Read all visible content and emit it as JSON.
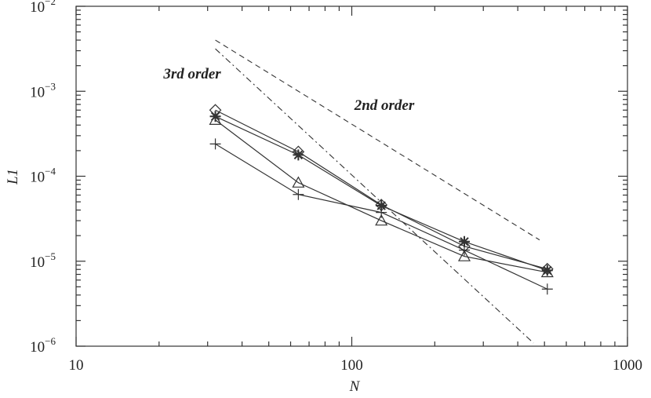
{
  "chart_data": {
    "type": "line",
    "xlabel": "N",
    "ylabel": "L1",
    "log_x": true,
    "log_y": true,
    "xlim": [
      10,
      1000
    ],
    "ylim": [
      1e-06,
      0.01
    ],
    "xticks": [
      10,
      100,
      1000
    ],
    "yticks": [
      {
        "value": 1e-06,
        "label": "10",
        "exponent": "−6"
      },
      {
        "value": 1e-05,
        "label": "10",
        "exponent": "−5"
      },
      {
        "value": 0.0001,
        "label": "10",
        "exponent": "−4"
      },
      {
        "value": 0.001,
        "label": "10",
        "exponent": "−3"
      },
      {
        "value": 0.01,
        "label": "10",
        "exponent": "−2"
      }
    ],
    "x": [
      32,
      64,
      128,
      256,
      512
    ],
    "series": [
      {
        "marker": "diamond",
        "color": "#333333",
        "values": [
          0.0006,
          0.000194,
          4.6e-05,
          1.5e-05,
          8.1e-06
        ]
      },
      {
        "marker": "asterisk",
        "color": "#333333",
        "values": [
          0.000506,
          0.000178,
          4.5e-05,
          1.7e-05,
          7.8e-06
        ]
      },
      {
        "marker": "triangle",
        "color": "#333333",
        "values": [
          0.00046,
          8.4e-05,
          3e-05,
          1.14e-05,
          7.4e-06
        ]
      },
      {
        "marker": "plus",
        "color": "#333333",
        "values": [
          0.00024,
          6.1e-05,
          3.75e-05,
          1.35e-05,
          4.7e-06
        ]
      }
    ],
    "reference_lines": [
      {
        "label": "2nd order",
        "dash": "dashed",
        "x": [
          32,
          480
        ],
        "values": [
          0.004,
          1.78e-05
        ]
      },
      {
        "label": "3rd order",
        "dash": "dashdot",
        "x": [
          32,
          456
        ],
        "values": [
          0.00316,
          1.09e-06
        ]
      }
    ]
  }
}
